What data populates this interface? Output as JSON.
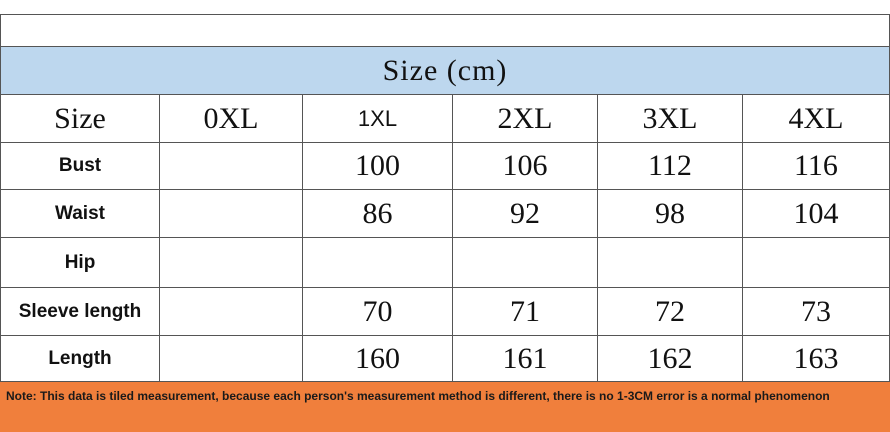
{
  "table": {
    "title": "Size (cm)",
    "header": [
      "Size",
      "0XL",
      "1XL",
      "2XL",
      "3XL",
      "4XL"
    ],
    "rows": [
      [
        "Bust",
        null,
        100,
        106,
        112,
        116
      ],
      [
        "Waist",
        null,
        86,
        92,
        98,
        104
      ],
      [
        "Hip",
        null,
        null,
        null,
        null,
        null
      ],
      [
        "Sleeve length",
        null,
        70,
        71,
        72,
        73
      ],
      [
        "Length",
        null,
        160,
        161,
        162,
        163
      ]
    ],
    "note": "Note: This data is tiled measurement, because each person's measurement method is different, there is no 1-3CM error is a normal phenomenon"
  }
}
